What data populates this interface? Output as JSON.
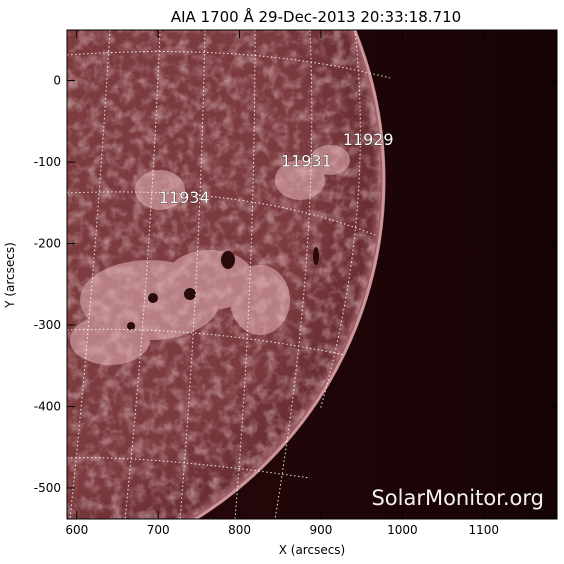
{
  "title": "AIA 1700 Å 29-Dec-2013 20:33:18.710",
  "x_axis_label": "X (arcsecs)",
  "y_axis_label": "Y (arcsecs)",
  "x_ticks": [
    600,
    700,
    800,
    900,
    1000,
    1100
  ],
  "y_ticks": [
    0,
    -100,
    -200,
    -300,
    -400,
    -500
  ],
  "x_range": [
    588,
    1190
  ],
  "y_range": [
    -538,
    62
  ],
  "active_regions": [
    {
      "label": "11929",
      "x": 958,
      "y": -72
    },
    {
      "label": "11931",
      "x": 882,
      "y": -98
    },
    {
      "label": "11934",
      "x": 732,
      "y": -143
    }
  ],
  "watermark": "SolarMonitor.org",
  "colors": {
    "disk": "#7a3a3e",
    "space": "#1a0406",
    "grid": "#ffffff"
  }
}
